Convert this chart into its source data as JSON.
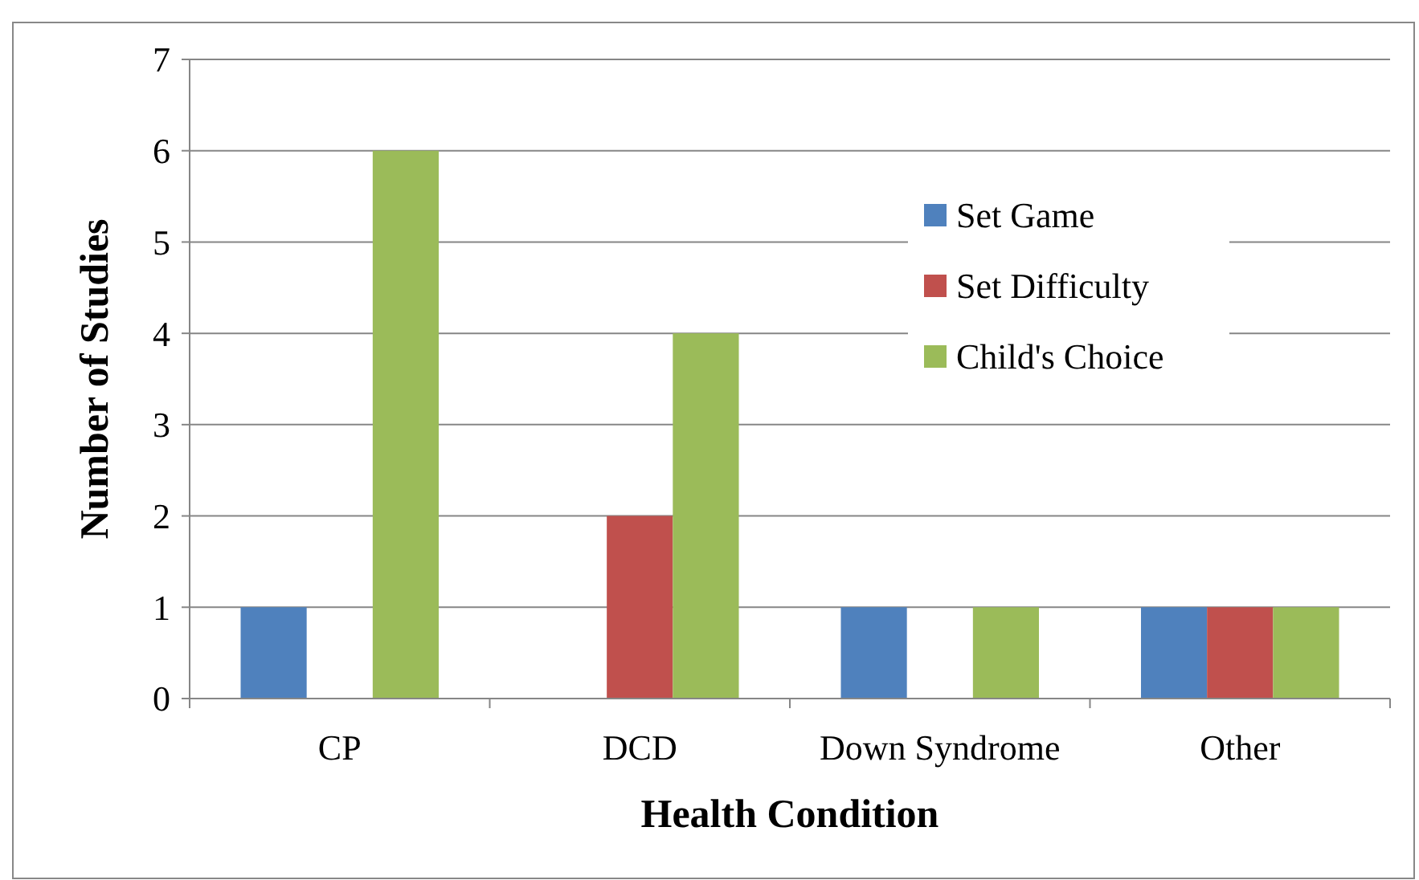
{
  "chart_data": {
    "type": "bar",
    "xlabel": "Health Condition",
    "ylabel": "Number of Studies",
    "categories": [
      "CP",
      "DCD",
      "Down Syndrome",
      "Other"
    ],
    "series": [
      {
        "name": "Set Game",
        "color": "#4f81bd",
        "values": [
          1,
          0,
          1,
          1
        ]
      },
      {
        "name": "Set Difficulty",
        "color": "#c0504d",
        "values": [
          0,
          2,
          0,
          1
        ]
      },
      {
        "name": "Child's Choice",
        "color": "#9bbb59",
        "values": [
          6,
          4,
          1,
          1
        ]
      }
    ],
    "ylim": [
      0,
      7
    ],
    "yticks": [
      0,
      1,
      2,
      3,
      4,
      5,
      6,
      7
    ],
    "grid": "y",
    "legend": "top right"
  }
}
